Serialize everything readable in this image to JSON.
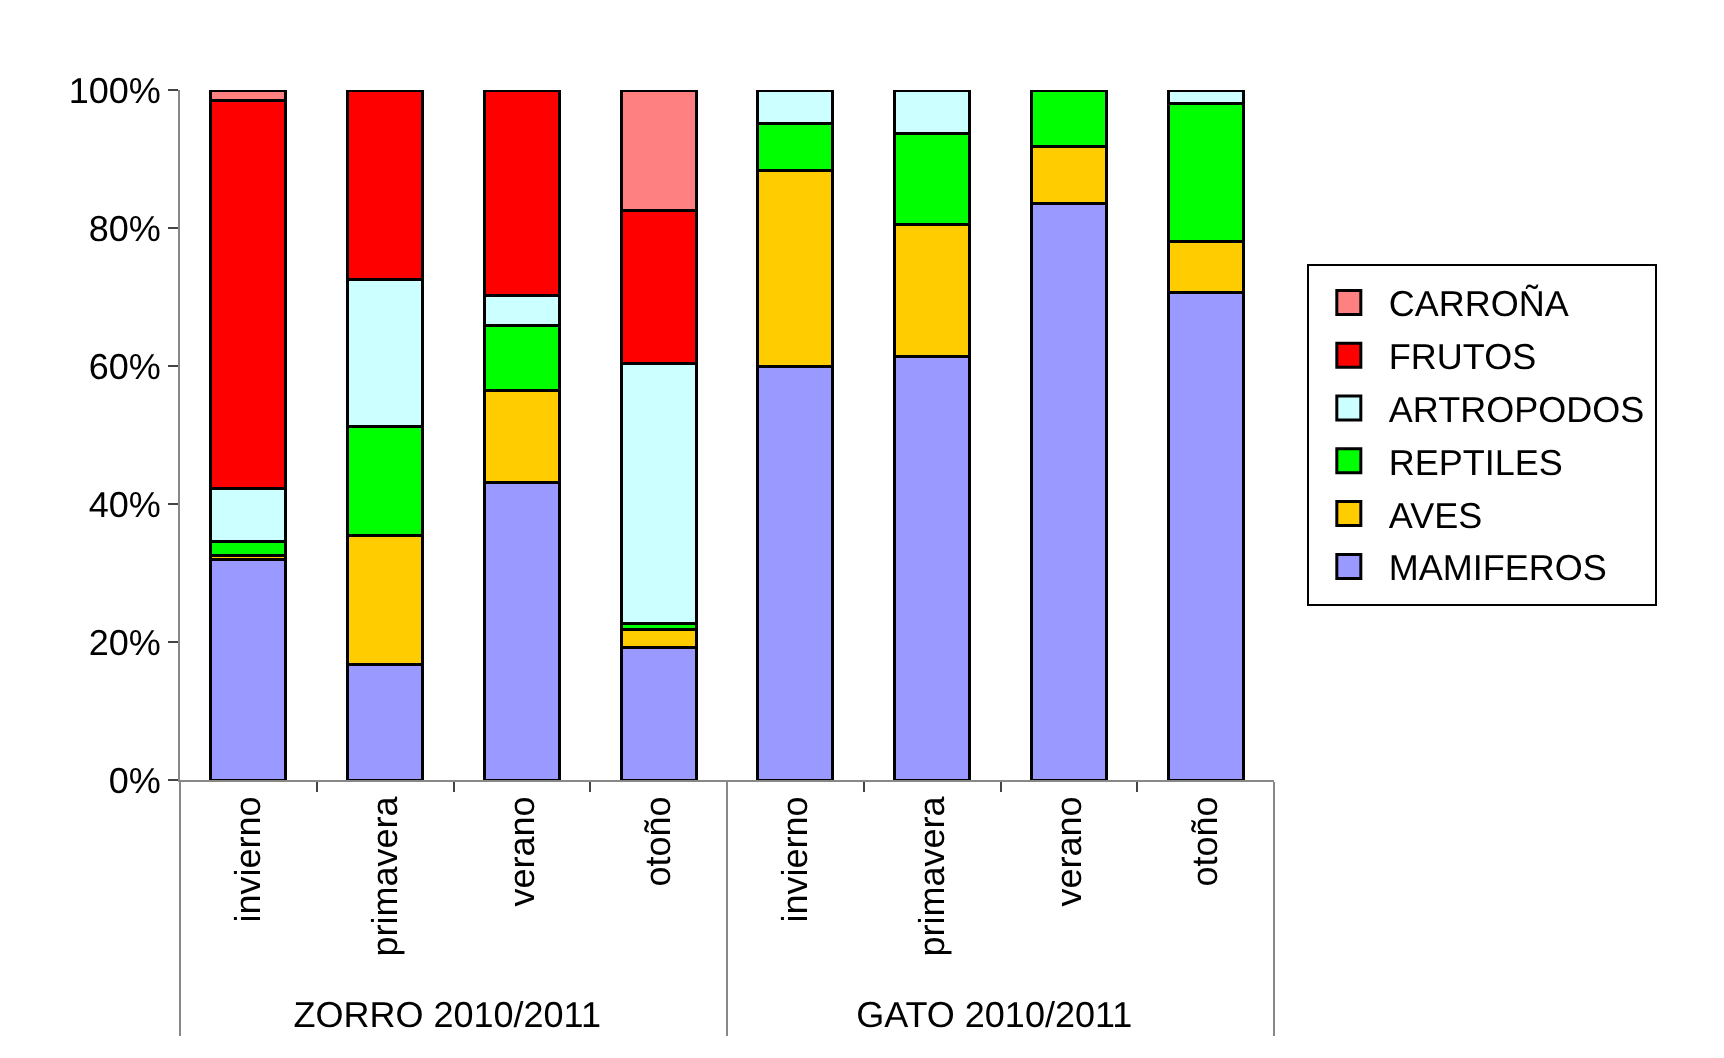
{
  "chart_data": {
    "type": "bar",
    "stacked": true,
    "categories": [
      "invierno",
      "primavera",
      "verano",
      "otoño",
      "invierno",
      "primavera",
      "verano",
      "otoño"
    ],
    "annotations": [
      "ZORRO 2010/2011",
      "GATO 2010/2011"
    ],
    "series": [
      {
        "name": "MAMIFEROS",
        "color": "#9999ff",
        "values": [
          32.0,
          16.7,
          43.1,
          19.2,
          60.0,
          61.4,
          83.5,
          70.7
        ]
      },
      {
        "name": "AVES",
        "color": "#ffcc00",
        "values": [
          0.5,
          18.7,
          13.3,
          2.6,
          28.3,
          19.1,
          8.3,
          7.3
        ]
      },
      {
        "name": "REPTILES",
        "color": "#00ff00",
        "values": [
          2.0,
          15.8,
          9.5,
          0.9,
          6.8,
          13.2,
          8.2,
          20.1
        ]
      },
      {
        "name": "ARTROPODOS",
        "color": "#ccffff",
        "values": [
          7.7,
          21.4,
          4.3,
          37.7,
          4.9,
          6.3,
          null,
          1.9
        ]
      },
      {
        "name": "FRUTOS",
        "color": "#ff0000",
        "values": [
          56.3,
          27.4,
          29.8,
          22.1,
          null,
          null,
          null,
          null
        ]
      },
      {
        "name": "CARROÑA",
        "color": "#ff8080",
        "values": [
          1.4,
          null,
          null,
          17.5,
          null,
          null,
          null,
          null
        ]
      }
    ],
    "ylim": [
      0,
      100
    ],
    "yticks": [
      {
        "value": 0,
        "label": "0%"
      },
      {
        "value": 20,
        "label": "20%"
      },
      {
        "value": 40,
        "label": "40%"
      },
      {
        "value": 60,
        "label": "60%"
      },
      {
        "value": 80,
        "label": "80%"
      },
      {
        "value": 100,
        "label": "100%"
      }
    ],
    "legend": "right"
  }
}
